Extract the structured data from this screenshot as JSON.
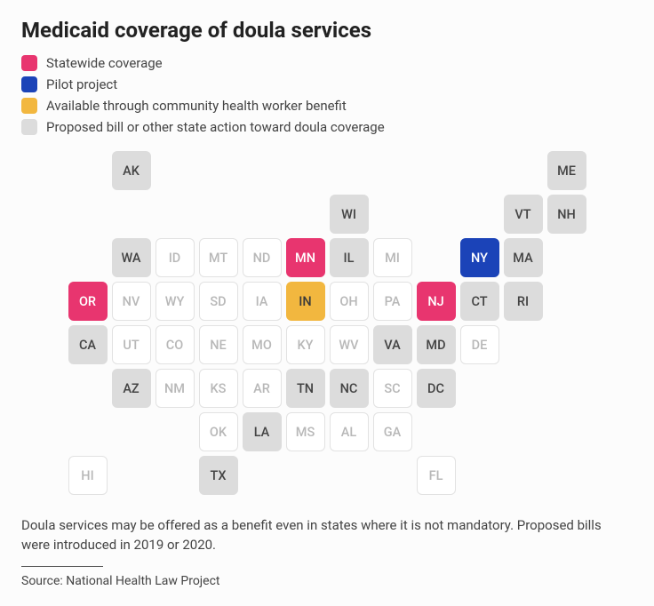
{
  "title": "Medicaid coverage of doula services",
  "legend": [
    {
      "color": "#e8356f",
      "label": "Statewide coverage"
    },
    {
      "color": "#1b43b8",
      "label": "Pilot project"
    },
    {
      "color": "#f2b73f",
      "label": "Available through community health worker benefit"
    },
    {
      "color": "#dcdcdc",
      "label": "Proposed bill or other state action toward doula coverage"
    }
  ],
  "categories": {
    "statewide": {
      "bg": "#e8356f",
      "fg": "#ffffff",
      "border": "#e8356f"
    },
    "pilot": {
      "bg": "#1b43b8",
      "fg": "#ffffff",
      "border": "#1b43b8"
    },
    "chw": {
      "bg": "#f2b73f",
      "fg": "#3a3a3a",
      "border": "#f2b73f"
    },
    "proposed": {
      "bg": "#dcdcdc",
      "fg": "#444444",
      "border": "#dcdcdc"
    },
    "none": {
      "bg": "#ffffff",
      "fg": "#b8b8b8",
      "border": "#e2e2e2"
    }
  },
  "states": [
    {
      "abbr": "AK",
      "row": 1,
      "col": 2,
      "cat": "proposed"
    },
    {
      "abbr": "ME",
      "row": 1,
      "col": 12,
      "cat": "proposed"
    },
    {
      "abbr": "WI",
      "row": 2,
      "col": 7,
      "cat": "proposed"
    },
    {
      "abbr": "VT",
      "row": 2,
      "col": 11,
      "cat": "proposed"
    },
    {
      "abbr": "NH",
      "row": 2,
      "col": 12,
      "cat": "proposed"
    },
    {
      "abbr": "WA",
      "row": 3,
      "col": 2,
      "cat": "proposed"
    },
    {
      "abbr": "ID",
      "row": 3,
      "col": 3,
      "cat": "none"
    },
    {
      "abbr": "MT",
      "row": 3,
      "col": 4,
      "cat": "none"
    },
    {
      "abbr": "ND",
      "row": 3,
      "col": 5,
      "cat": "none"
    },
    {
      "abbr": "MN",
      "row": 3,
      "col": 6,
      "cat": "statewide"
    },
    {
      "abbr": "IL",
      "row": 3,
      "col": 7,
      "cat": "proposed"
    },
    {
      "abbr": "MI",
      "row": 3,
      "col": 8,
      "cat": "none"
    },
    {
      "abbr": "NY",
      "row": 3,
      "col": 10,
      "cat": "pilot"
    },
    {
      "abbr": "MA",
      "row": 3,
      "col": 11,
      "cat": "proposed"
    },
    {
      "abbr": "OR",
      "row": 4,
      "col": 1,
      "cat": "statewide"
    },
    {
      "abbr": "NV",
      "row": 4,
      "col": 2,
      "cat": "none"
    },
    {
      "abbr": "WY",
      "row": 4,
      "col": 3,
      "cat": "none"
    },
    {
      "abbr": "SD",
      "row": 4,
      "col": 4,
      "cat": "none"
    },
    {
      "abbr": "IA",
      "row": 4,
      "col": 5,
      "cat": "none"
    },
    {
      "abbr": "IN",
      "row": 4,
      "col": 6,
      "cat": "chw"
    },
    {
      "abbr": "OH",
      "row": 4,
      "col": 7,
      "cat": "none"
    },
    {
      "abbr": "PA",
      "row": 4,
      "col": 8,
      "cat": "none"
    },
    {
      "abbr": "NJ",
      "row": 4,
      "col": 9,
      "cat": "statewide"
    },
    {
      "abbr": "CT",
      "row": 4,
      "col": 10,
      "cat": "proposed"
    },
    {
      "abbr": "RI",
      "row": 4,
      "col": 11,
      "cat": "proposed"
    },
    {
      "abbr": "CA",
      "row": 5,
      "col": 1,
      "cat": "proposed"
    },
    {
      "abbr": "UT",
      "row": 5,
      "col": 2,
      "cat": "none"
    },
    {
      "abbr": "CO",
      "row": 5,
      "col": 3,
      "cat": "none"
    },
    {
      "abbr": "NE",
      "row": 5,
      "col": 4,
      "cat": "none"
    },
    {
      "abbr": "MO",
      "row": 5,
      "col": 5,
      "cat": "none"
    },
    {
      "abbr": "KY",
      "row": 5,
      "col": 6,
      "cat": "none"
    },
    {
      "abbr": "WV",
      "row": 5,
      "col": 7,
      "cat": "none"
    },
    {
      "abbr": "VA",
      "row": 5,
      "col": 8,
      "cat": "proposed"
    },
    {
      "abbr": "MD",
      "row": 5,
      "col": 9,
      "cat": "proposed"
    },
    {
      "abbr": "DE",
      "row": 5,
      "col": 10,
      "cat": "none"
    },
    {
      "abbr": "AZ",
      "row": 6,
      "col": 2,
      "cat": "proposed"
    },
    {
      "abbr": "NM",
      "row": 6,
      "col": 3,
      "cat": "none"
    },
    {
      "abbr": "KS",
      "row": 6,
      "col": 4,
      "cat": "none"
    },
    {
      "abbr": "AR",
      "row": 6,
      "col": 5,
      "cat": "none"
    },
    {
      "abbr": "TN",
      "row": 6,
      "col": 6,
      "cat": "proposed"
    },
    {
      "abbr": "NC",
      "row": 6,
      "col": 7,
      "cat": "proposed"
    },
    {
      "abbr": "SC",
      "row": 6,
      "col": 8,
      "cat": "none"
    },
    {
      "abbr": "DC",
      "row": 6,
      "col": 9,
      "cat": "proposed"
    },
    {
      "abbr": "OK",
      "row": 7,
      "col": 4,
      "cat": "none"
    },
    {
      "abbr": "LA",
      "row": 7,
      "col": 5,
      "cat": "proposed"
    },
    {
      "abbr": "MS",
      "row": 7,
      "col": 6,
      "cat": "none"
    },
    {
      "abbr": "AL",
      "row": 7,
      "col": 7,
      "cat": "none"
    },
    {
      "abbr": "GA",
      "row": 7,
      "col": 8,
      "cat": "none"
    },
    {
      "abbr": "HI",
      "row": 8,
      "col": 1,
      "cat": "none"
    },
    {
      "abbr": "TX",
      "row": 8,
      "col": 4,
      "cat": "proposed"
    },
    {
      "abbr": "FL",
      "row": 8,
      "col": 9,
      "cat": "none"
    }
  ],
  "note": "Doula services may be offered as a benefit even in states where it is not mandatory. Proposed bills were introduced in 2019 or 2020.",
  "source": "Source: National Health Law Project"
}
